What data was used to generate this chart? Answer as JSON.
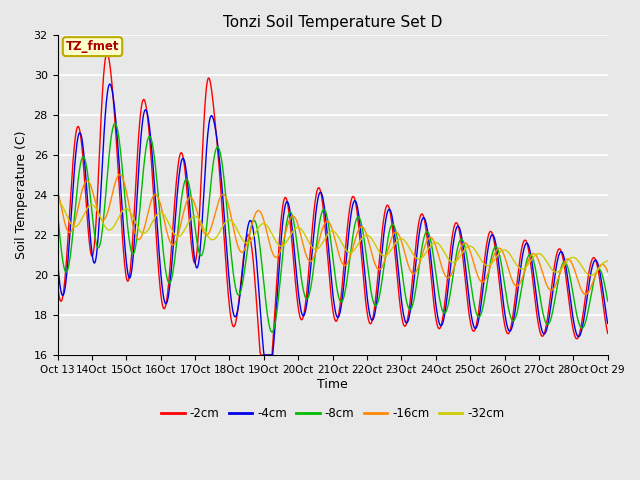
{
  "title": "Tonzi Soil Temperature Set D",
  "xlabel": "Time",
  "ylabel": "Soil Temperature (C)",
  "ylim": [
    16,
    32
  ],
  "annotation_text": "TZ_fmet",
  "annotation_color": "#aa0000",
  "annotation_bg": "#ffffcc",
  "annotation_border": "#bbaa00",
  "fig_bg": "#e8e8e8",
  "plot_bg": "#e8e8e8",
  "grid_color": "#ffffff",
  "series_colors": [
    "#ff0000",
    "#0000ee",
    "#00bb00",
    "#ff8800",
    "#cccc00"
  ],
  "series_labels": [
    "-2cm",
    "-4cm",
    "-8cm",
    "-16cm",
    "-32cm"
  ],
  "x_start": 13,
  "x_end": 29,
  "num_points": 960,
  "xtick_positions": [
    13,
    14,
    15,
    16,
    17,
    18,
    19,
    20,
    21,
    22,
    23,
    24,
    25,
    26,
    27,
    28,
    29
  ],
  "xtick_labels": [
    "Oct 13",
    "14Oct",
    "15Oct",
    "16Oct",
    "17Oct",
    "18Oct",
    "19Oct",
    "20Oct",
    "21Oct",
    "22Oct",
    "23Oct",
    "24Oct",
    "25Oct",
    "26Oct",
    "27Oct",
    "28Oct",
    "Oct 29"
  ]
}
